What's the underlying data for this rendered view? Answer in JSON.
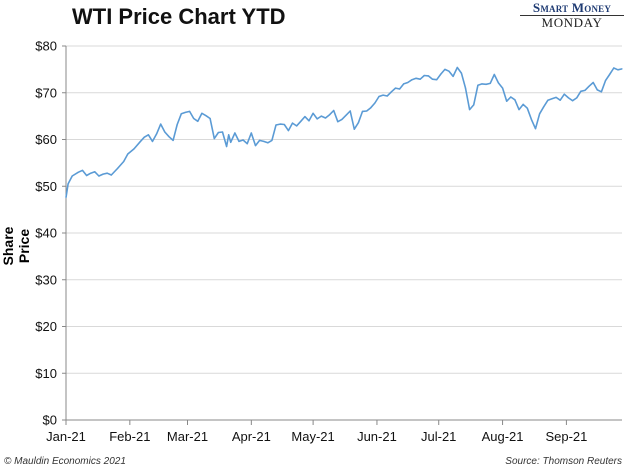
{
  "header": {
    "title": "WTI Price Chart YTD",
    "brand_top": "Smart Money",
    "brand_bottom": "MONDAY"
  },
  "footer": {
    "left": "© Mauldin Economics 2021",
    "right": "Source: Thomson Reuters"
  },
  "chart_data": {
    "type": "line",
    "title": "WTI Price Chart YTD",
    "ylabel": "Share Price",
    "xlabel": "",
    "ylim": [
      0,
      80
    ],
    "xlim": [
      0,
      270
    ],
    "yticks": [
      {
        "v": 0,
        "label": "$0"
      },
      {
        "v": 10,
        "label": "$10"
      },
      {
        "v": 20,
        "label": "$20"
      },
      {
        "v": 30,
        "label": "$30"
      },
      {
        "v": 40,
        "label": "$40"
      },
      {
        "v": 50,
        "label": "$50"
      },
      {
        "v": 60,
        "label": "$60"
      },
      {
        "v": 70,
        "label": "$70"
      },
      {
        "v": 80,
        "label": "$80"
      }
    ],
    "xticks": [
      {
        "v": 0,
        "label": "Jan-21"
      },
      {
        "v": 31,
        "label": "Feb-21"
      },
      {
        "v": 59,
        "label": "Mar-21"
      },
      {
        "v": 90,
        "label": "Apr-21"
      },
      {
        "v": 120,
        "label": "May-21"
      },
      {
        "v": 151,
        "label": "Jun-21"
      },
      {
        "v": 181,
        "label": "Jul-21"
      },
      {
        "v": 212,
        "label": "Aug-21"
      },
      {
        "v": 243,
        "label": "Sep-21"
      }
    ],
    "grid": true,
    "line_color": "#5b9bd5",
    "series": [
      {
        "values": [
          [
            0,
            47.6
          ],
          [
            1,
            50.5
          ],
          [
            3,
            52.2
          ],
          [
            6,
            53.0
          ],
          [
            8,
            53.4
          ],
          [
            10,
            52.3
          ],
          [
            12,
            52.8
          ],
          [
            14,
            53.1
          ],
          [
            16,
            52.2
          ],
          [
            18,
            52.6
          ],
          [
            20,
            52.8
          ],
          [
            22,
            52.4
          ],
          [
            25,
            53.8
          ],
          [
            28,
            55.3
          ],
          [
            30,
            56.9
          ],
          [
            33,
            58.0
          ],
          [
            36,
            59.5
          ],
          [
            38,
            60.5
          ],
          [
            40,
            61.0
          ],
          [
            42,
            59.6
          ],
          [
            44,
            61.2
          ],
          [
            46,
            63.3
          ],
          [
            48,
            61.6
          ],
          [
            50,
            60.6
          ],
          [
            52,
            59.8
          ],
          [
            54,
            63.2
          ],
          [
            56,
            65.5
          ],
          [
            58,
            65.8
          ],
          [
            60,
            66.0
          ],
          [
            62,
            64.5
          ],
          [
            64,
            63.9
          ],
          [
            66,
            65.6
          ],
          [
            68,
            65.1
          ],
          [
            70,
            64.5
          ],
          [
            72,
            60.2
          ],
          [
            74,
            61.5
          ],
          [
            76,
            61.6
          ],
          [
            78,
            58.5
          ],
          [
            79,
            61.0
          ],
          [
            80,
            59.4
          ],
          [
            82,
            61.4
          ],
          [
            84,
            59.6
          ],
          [
            86,
            59.9
          ],
          [
            88,
            59.1
          ],
          [
            90,
            61.4
          ],
          [
            92,
            58.7
          ],
          [
            94,
            59.8
          ],
          [
            96,
            59.6
          ],
          [
            98,
            59.3
          ],
          [
            100,
            59.8
          ],
          [
            102,
            63.1
          ],
          [
            104,
            63.3
          ],
          [
            106,
            63.2
          ],
          [
            108,
            61.9
          ],
          [
            110,
            63.5
          ],
          [
            112,
            62.9
          ],
          [
            114,
            63.9
          ],
          [
            116,
            64.9
          ],
          [
            118,
            64.0
          ],
          [
            120,
            65.6
          ],
          [
            122,
            64.4
          ],
          [
            124,
            65.0
          ],
          [
            126,
            64.6
          ],
          [
            128,
            65.3
          ],
          [
            130,
            66.2
          ],
          [
            132,
            63.8
          ],
          [
            134,
            64.3
          ],
          [
            136,
            65.2
          ],
          [
            138,
            66.1
          ],
          [
            140,
            62.2
          ],
          [
            142,
            63.6
          ],
          [
            144,
            66.0
          ],
          [
            146,
            66.1
          ],
          [
            148,
            66.8
          ],
          [
            150,
            67.8
          ],
          [
            152,
            69.2
          ],
          [
            154,
            69.5
          ],
          [
            156,
            69.3
          ],
          [
            158,
            70.2
          ],
          [
            160,
            71.0
          ],
          [
            162,
            70.8
          ],
          [
            164,
            71.9
          ],
          [
            166,
            72.2
          ],
          [
            168,
            72.8
          ],
          [
            170,
            73.1
          ],
          [
            172,
            72.9
          ],
          [
            174,
            73.7
          ],
          [
            176,
            73.6
          ],
          [
            178,
            72.9
          ],
          [
            180,
            72.8
          ],
          [
            182,
            74.0
          ],
          [
            184,
            75.0
          ],
          [
            186,
            74.6
          ],
          [
            188,
            73.5
          ],
          [
            190,
            75.4
          ],
          [
            192,
            74.2
          ],
          [
            194,
            71.0
          ],
          [
            196,
            66.4
          ],
          [
            198,
            67.4
          ],
          [
            200,
            71.6
          ],
          [
            202,
            71.9
          ],
          [
            204,
            71.8
          ],
          [
            206,
            72.0
          ],
          [
            208,
            73.9
          ],
          [
            210,
            72.1
          ],
          [
            212,
            71.0
          ],
          [
            214,
            68.2
          ],
          [
            216,
            69.1
          ],
          [
            218,
            68.5
          ],
          [
            220,
            66.4
          ],
          [
            222,
            67.5
          ],
          [
            224,
            66.7
          ],
          [
            226,
            64.3
          ],
          [
            228,
            62.3
          ],
          [
            230,
            65.5
          ],
          [
            232,
            67.0
          ],
          [
            234,
            68.4
          ],
          [
            236,
            68.7
          ],
          [
            238,
            69.0
          ],
          [
            240,
            68.4
          ],
          [
            242,
            69.7
          ],
          [
            244,
            68.9
          ],
          [
            246,
            68.3
          ],
          [
            248,
            68.9
          ],
          [
            250,
            70.3
          ],
          [
            252,
            70.5
          ],
          [
            254,
            71.4
          ],
          [
            256,
            72.2
          ],
          [
            258,
            70.6
          ],
          [
            260,
            70.2
          ],
          [
            262,
            72.6
          ],
          [
            264,
            73.9
          ],
          [
            266,
            75.3
          ],
          [
            268,
            74.9
          ],
          [
            270,
            75.1
          ]
        ]
      }
    ]
  }
}
